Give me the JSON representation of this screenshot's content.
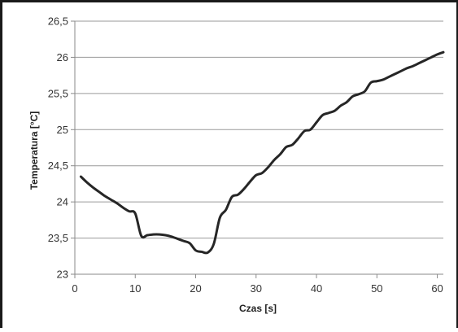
{
  "chart_data": {
    "type": "line",
    "xlabel": "Czas [s]",
    "ylabel": "Temperatura [°C]",
    "xlim": [
      0,
      61
    ],
    "ylim": [
      23,
      26.5
    ],
    "grid": "horizontal",
    "x_ticks": [
      0,
      10,
      20,
      30,
      40,
      50,
      60
    ],
    "x_tick_labels": [
      "0",
      "10",
      "20",
      "30",
      "40",
      "50",
      "60"
    ],
    "y_ticks": [
      23,
      23.5,
      24,
      24.5,
      25,
      25.5,
      26,
      26.5
    ],
    "y_tick_labels": [
      "23",
      "23,5",
      "24",
      "24,5",
      "25",
      "25,5",
      "26",
      "26,5"
    ],
    "line_color": "#262626",
    "series": [
      {
        "x": [
          1,
          2,
          3,
          4,
          5,
          6,
          7,
          8,
          9,
          10,
          11,
          12,
          13,
          14,
          15,
          16,
          17,
          18,
          19,
          20,
          21,
          22,
          23,
          24,
          25,
          26,
          27,
          28,
          29,
          30,
          31,
          32,
          33,
          34,
          35,
          36,
          37,
          38,
          39,
          40,
          41,
          42,
          43,
          44,
          45,
          46,
          47,
          48,
          49,
          50,
          51,
          52,
          53,
          54,
          55,
          56,
          57,
          58,
          59,
          60,
          61
        ],
        "y": [
          24.35,
          24.27,
          24.2,
          24.14,
          24.08,
          24.03,
          23.98,
          23.92,
          23.87,
          23.84,
          23.53,
          23.54,
          23.55,
          23.55,
          23.54,
          23.52,
          23.49,
          23.46,
          23.43,
          23.33,
          23.31,
          23.3,
          23.42,
          23.78,
          23.89,
          24.07,
          24.1,
          24.18,
          24.28,
          24.37,
          24.4,
          24.48,
          24.58,
          24.66,
          24.76,
          24.79,
          24.88,
          24.98,
          25.0,
          25.1,
          25.2,
          25.23,
          25.26,
          25.33,
          25.38,
          25.46,
          25.49,
          25.53,
          25.65,
          25.67,
          25.69,
          25.73,
          25.77,
          25.81,
          25.85,
          25.88,
          25.92,
          25.96,
          26.0,
          26.04,
          26.07
        ]
      }
    ]
  }
}
